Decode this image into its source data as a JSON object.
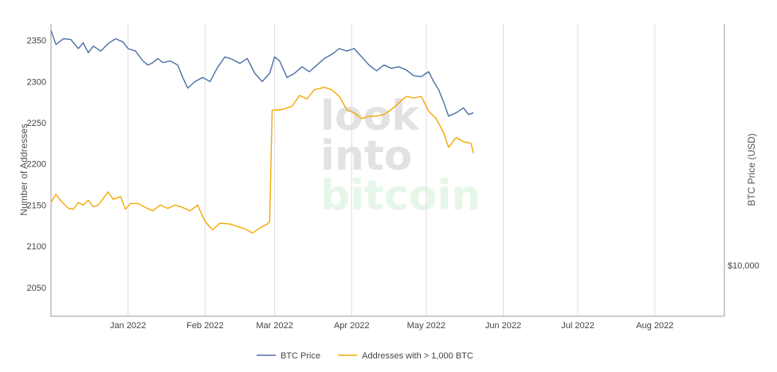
{
  "chart_data": {
    "type": "line",
    "title": "",
    "ylabel": "Number of Addresses",
    "y2label": "BTC Price (USD)",
    "ylim": [
      2015,
      2370
    ],
    "yticks": [
      2050,
      2100,
      2150,
      2200,
      2250,
      2300,
      2350
    ],
    "y2ticks": [
      {
        "label": "$10,000",
        "value": 10000
      }
    ],
    "y2_scale": "log",
    "xlim": [
      "2021-12-01",
      "2022-08-29"
    ],
    "xticks": [
      {
        "label": "Jan 2022",
        "date": "2022-01-01"
      },
      {
        "label": "Feb 2022",
        "date": "2022-02-01"
      },
      {
        "label": "Mar 2022",
        "date": "2022-03-01"
      },
      {
        "label": "Apr 2022",
        "date": "2022-04-01"
      },
      {
        "label": "May 2022",
        "date": "2022-05-01"
      },
      {
        "label": "Jun 2022",
        "date": "2022-06-01"
      },
      {
        "label": "Jul 2022",
        "date": "2022-07-01"
      },
      {
        "label": "Aug 2022",
        "date": "2022-08-01"
      }
    ],
    "grid": "vertical",
    "legend_position": "bottom",
    "watermark": [
      "look",
      "into",
      "bitcoin"
    ],
    "series": [
      {
        "name": "BTC Price",
        "color": "#4a6fa5",
        "points": [
          [
            "2021-12-01",
            2362
          ],
          [
            "2021-12-03",
            2345
          ],
          [
            "2021-12-06",
            2352
          ],
          [
            "2021-12-09",
            2351
          ],
          [
            "2021-12-12",
            2340
          ],
          [
            "2021-12-14",
            2347
          ],
          [
            "2021-12-16",
            2335
          ],
          [
            "2021-12-18",
            2343
          ],
          [
            "2021-12-21",
            2337
          ],
          [
            "2021-12-24",
            2346
          ],
          [
            "2021-12-27",
            2352
          ],
          [
            "2021-12-30",
            2348
          ],
          [
            "2022-01-01",
            2340
          ],
          [
            "2022-01-04",
            2337
          ],
          [
            "2022-01-07",
            2325
          ],
          [
            "2022-01-09",
            2320
          ],
          [
            "2022-01-11",
            2323
          ],
          [
            "2022-01-13",
            2328
          ],
          [
            "2022-01-15",
            2323
          ],
          [
            "2022-01-18",
            2325
          ],
          [
            "2022-01-21",
            2320
          ],
          [
            "2022-01-23",
            2305
          ],
          [
            "2022-01-25",
            2292
          ],
          [
            "2022-01-28",
            2300
          ],
          [
            "2022-01-31",
            2305
          ],
          [
            "2022-02-03",
            2300
          ],
          [
            "2022-02-06",
            2317
          ],
          [
            "2022-02-09",
            2330
          ],
          [
            "2022-02-12",
            2327
          ],
          [
            "2022-02-15",
            2322
          ],
          [
            "2022-02-18",
            2328
          ],
          [
            "2022-02-21",
            2310
          ],
          [
            "2022-02-24",
            2300
          ],
          [
            "2022-02-27",
            2310
          ],
          [
            "2022-03-01",
            2330
          ],
          [
            "2022-03-03",
            2325
          ],
          [
            "2022-03-06",
            2305
          ],
          [
            "2022-03-09",
            2310
          ],
          [
            "2022-03-12",
            2318
          ],
          [
            "2022-03-15",
            2312
          ],
          [
            "2022-03-18",
            2320
          ],
          [
            "2022-03-21",
            2328
          ],
          [
            "2022-03-24",
            2333
          ],
          [
            "2022-03-27",
            2340
          ],
          [
            "2022-03-30",
            2337
          ],
          [
            "2022-04-02",
            2340
          ],
          [
            "2022-04-05",
            2330
          ],
          [
            "2022-04-08",
            2320
          ],
          [
            "2022-04-11",
            2313
          ],
          [
            "2022-04-14",
            2320
          ],
          [
            "2022-04-17",
            2316
          ],
          [
            "2022-04-20",
            2318
          ],
          [
            "2022-04-23",
            2314
          ],
          [
            "2022-04-26",
            2307
          ],
          [
            "2022-04-29",
            2306
          ],
          [
            "2022-05-02",
            2312
          ],
          [
            "2022-05-04",
            2300
          ],
          [
            "2022-05-06",
            2290
          ],
          [
            "2022-05-08",
            2275
          ],
          [
            "2022-05-10",
            2258
          ],
          [
            "2022-05-13",
            2262
          ],
          [
            "2022-05-16",
            2268
          ],
          [
            "2022-05-18",
            2260
          ],
          [
            "2022-05-20",
            2262
          ]
        ]
      },
      {
        "name": "Addresses with > 1,000 BTC",
        "color": "#f5a800",
        "points": [
          [
            "2021-12-01",
            2153
          ],
          [
            "2021-12-03",
            2163
          ],
          [
            "2021-12-05",
            2155
          ],
          [
            "2021-12-08",
            2146
          ],
          [
            "2021-12-10",
            2145
          ],
          [
            "2021-12-12",
            2153
          ],
          [
            "2021-12-14",
            2150
          ],
          [
            "2021-12-16",
            2156
          ],
          [
            "2021-12-18",
            2148
          ],
          [
            "2021-12-20",
            2150
          ],
          [
            "2021-12-22",
            2158
          ],
          [
            "2021-12-24",
            2166
          ],
          [
            "2021-12-26",
            2157
          ],
          [
            "2021-12-29",
            2160
          ],
          [
            "2021-12-31",
            2145
          ],
          [
            "2022-01-02",
            2152
          ],
          [
            "2022-01-05",
            2152
          ],
          [
            "2022-01-08",
            2147
          ],
          [
            "2022-01-11",
            2143
          ],
          [
            "2022-01-14",
            2150
          ],
          [
            "2022-01-17",
            2146
          ],
          [
            "2022-01-20",
            2150
          ],
          [
            "2022-01-23",
            2147
          ],
          [
            "2022-01-26",
            2143
          ],
          [
            "2022-01-29",
            2150
          ],
          [
            "2022-02-01",
            2130
          ],
          [
            "2022-02-04",
            2120
          ],
          [
            "2022-02-07",
            2128
          ],
          [
            "2022-02-11",
            2127
          ],
          [
            "2022-02-15",
            2123
          ],
          [
            "2022-02-18",
            2120
          ],
          [
            "2022-02-20",
            2116
          ],
          [
            "2022-02-23",
            2122
          ],
          [
            "2022-02-26",
            2127
          ],
          [
            "2022-02-27",
            2130
          ],
          [
            "2022-02-28",
            2265
          ],
          [
            "2022-03-04",
            2266
          ],
          [
            "2022-03-08",
            2270
          ],
          [
            "2022-03-11",
            2283
          ],
          [
            "2022-03-14",
            2279
          ],
          [
            "2022-03-17",
            2290
          ],
          [
            "2022-03-21",
            2293
          ],
          [
            "2022-03-24",
            2290
          ],
          [
            "2022-03-27",
            2282
          ],
          [
            "2022-03-30",
            2266
          ],
          [
            "2022-04-02",
            2262
          ],
          [
            "2022-04-05",
            2255
          ],
          [
            "2022-04-08",
            2258
          ],
          [
            "2022-04-11",
            2258
          ],
          [
            "2022-04-14",
            2260
          ],
          [
            "2022-04-17",
            2266
          ],
          [
            "2022-04-20",
            2274
          ],
          [
            "2022-04-23",
            2282
          ],
          [
            "2022-04-26",
            2280
          ],
          [
            "2022-04-29",
            2282
          ],
          [
            "2022-05-02",
            2264
          ],
          [
            "2022-05-05",
            2255
          ],
          [
            "2022-05-08",
            2238
          ],
          [
            "2022-05-10",
            2220
          ],
          [
            "2022-05-13",
            2232
          ],
          [
            "2022-05-16",
            2227
          ],
          [
            "2022-05-19",
            2225
          ],
          [
            "2022-05-20",
            2213
          ]
        ]
      }
    ]
  }
}
